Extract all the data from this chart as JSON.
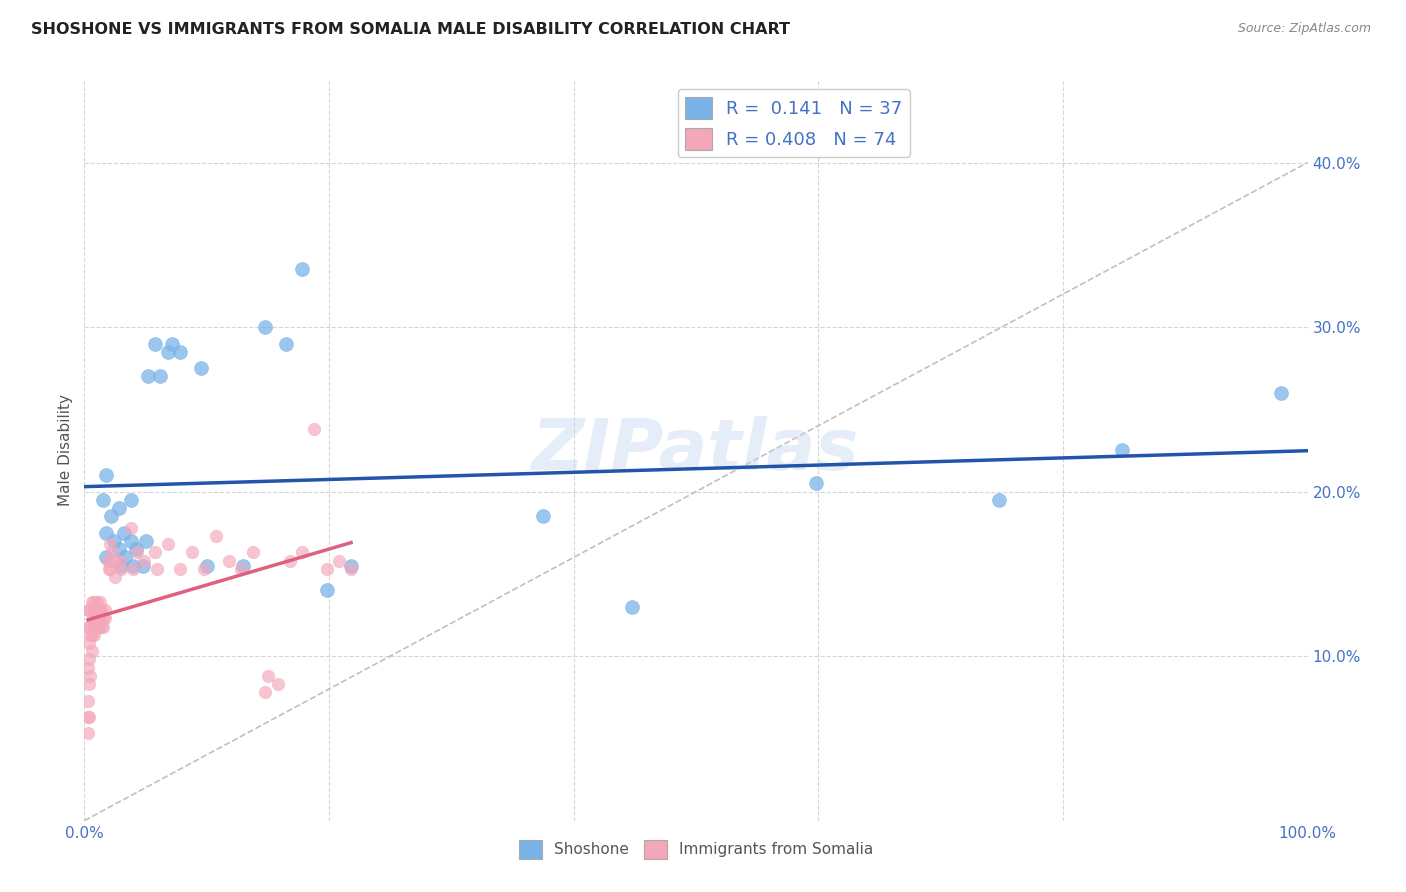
{
  "title": "SHOSHONE VS IMMIGRANTS FROM SOMALIA MALE DISABILITY CORRELATION CHART",
  "source": "Source: ZipAtlas.com",
  "ylabel": "Male Disability",
  "xlim": [
    0.0,
    1.0
  ],
  "ylim": [
    0.0,
    0.45
  ],
  "x_ticks": [
    0.0,
    0.2,
    0.4,
    0.6,
    0.8,
    1.0
  ],
  "x_tick_labels": [
    "0.0%",
    "",
    "",
    "",
    "",
    "100.0%"
  ],
  "y_ticks": [
    0.1,
    0.2,
    0.3,
    0.4
  ],
  "y_tick_labels": [
    "10.0%",
    "20.0%",
    "30.0%",
    "40.0%"
  ],
  "watermark": "ZIPatlas",
  "shoshone_color": "#7ab3e8",
  "somalia_color": "#f4a7b9",
  "shoshone_line_color": "#2255aa",
  "somalia_line_color": "#e06080",
  "diagonal_color": "#ccbbbb",
  "title_color": "#222222",
  "axis_color": "#4472c4",
  "shoshone_points": [
    [
      0.015,
      0.195
    ],
    [
      0.018,
      0.21
    ],
    [
      0.018,
      0.175
    ],
    [
      0.018,
      0.16
    ],
    [
      0.022,
      0.185
    ],
    [
      0.024,
      0.17
    ],
    [
      0.028,
      0.165
    ],
    [
      0.028,
      0.19
    ],
    [
      0.03,
      0.155
    ],
    [
      0.032,
      0.175
    ],
    [
      0.033,
      0.16
    ],
    [
      0.038,
      0.195
    ],
    [
      0.038,
      0.17
    ],
    [
      0.04,
      0.155
    ],
    [
      0.042,
      0.165
    ],
    [
      0.048,
      0.155
    ],
    [
      0.05,
      0.17
    ],
    [
      0.052,
      0.27
    ],
    [
      0.058,
      0.29
    ],
    [
      0.062,
      0.27
    ],
    [
      0.068,
      0.285
    ],
    [
      0.072,
      0.29
    ],
    [
      0.078,
      0.285
    ],
    [
      0.095,
      0.275
    ],
    [
      0.1,
      0.155
    ],
    [
      0.13,
      0.155
    ],
    [
      0.148,
      0.3
    ],
    [
      0.165,
      0.29
    ],
    [
      0.178,
      0.335
    ],
    [
      0.198,
      0.14
    ],
    [
      0.218,
      0.155
    ],
    [
      0.375,
      0.185
    ],
    [
      0.448,
      0.13
    ],
    [
      0.598,
      0.205
    ],
    [
      0.748,
      0.195
    ],
    [
      0.848,
      0.225
    ],
    [
      0.978,
      0.26
    ]
  ],
  "somalia_points": [
    [
      0.004,
      0.128
    ],
    [
      0.005,
      0.118
    ],
    [
      0.006,
      0.133
    ],
    [
      0.006,
      0.113
    ],
    [
      0.007,
      0.128
    ],
    [
      0.007,
      0.118
    ],
    [
      0.007,
      0.123
    ],
    [
      0.008,
      0.133
    ],
    [
      0.008,
      0.118
    ],
    [
      0.008,
      0.113
    ],
    [
      0.009,
      0.128
    ],
    [
      0.009,
      0.123
    ],
    [
      0.009,
      0.118
    ],
    [
      0.01,
      0.133
    ],
    [
      0.01,
      0.128
    ],
    [
      0.01,
      0.118
    ],
    [
      0.011,
      0.128
    ],
    [
      0.011,
      0.123
    ],
    [
      0.011,
      0.118
    ],
    [
      0.012,
      0.128
    ],
    [
      0.012,
      0.118
    ],
    [
      0.013,
      0.133
    ],
    [
      0.013,
      0.123
    ],
    [
      0.014,
      0.128
    ],
    [
      0.014,
      0.118
    ],
    [
      0.015,
      0.123
    ],
    [
      0.015,
      0.118
    ],
    [
      0.017,
      0.128
    ],
    [
      0.017,
      0.123
    ],
    [
      0.019,
      0.158
    ],
    [
      0.02,
      0.153
    ],
    [
      0.021,
      0.168
    ],
    [
      0.021,
      0.153
    ],
    [
      0.023,
      0.163
    ],
    [
      0.024,
      0.158
    ],
    [
      0.025,
      0.148
    ],
    [
      0.029,
      0.158
    ],
    [
      0.03,
      0.153
    ],
    [
      0.038,
      0.178
    ],
    [
      0.04,
      0.153
    ],
    [
      0.043,
      0.163
    ],
    [
      0.049,
      0.158
    ],
    [
      0.058,
      0.163
    ],
    [
      0.059,
      0.153
    ],
    [
      0.068,
      0.168
    ],
    [
      0.078,
      0.153
    ],
    [
      0.088,
      0.163
    ],
    [
      0.098,
      0.153
    ],
    [
      0.108,
      0.173
    ],
    [
      0.118,
      0.158
    ],
    [
      0.128,
      0.153
    ],
    [
      0.138,
      0.163
    ],
    [
      0.148,
      0.078
    ],
    [
      0.158,
      0.083
    ],
    [
      0.168,
      0.158
    ],
    [
      0.178,
      0.163
    ],
    [
      0.188,
      0.238
    ],
    [
      0.198,
      0.153
    ],
    [
      0.208,
      0.158
    ],
    [
      0.218,
      0.153
    ],
    [
      0.003,
      0.128
    ],
    [
      0.003,
      0.118
    ],
    [
      0.004,
      0.108
    ],
    [
      0.005,
      0.113
    ],
    [
      0.006,
      0.103
    ],
    [
      0.004,
      0.098
    ],
    [
      0.005,
      0.088
    ],
    [
      0.003,
      0.093
    ],
    [
      0.004,
      0.083
    ],
    [
      0.003,
      0.073
    ],
    [
      0.004,
      0.063
    ],
    [
      0.003,
      0.063
    ],
    [
      0.003,
      0.053
    ],
    [
      0.15,
      0.088
    ]
  ]
}
